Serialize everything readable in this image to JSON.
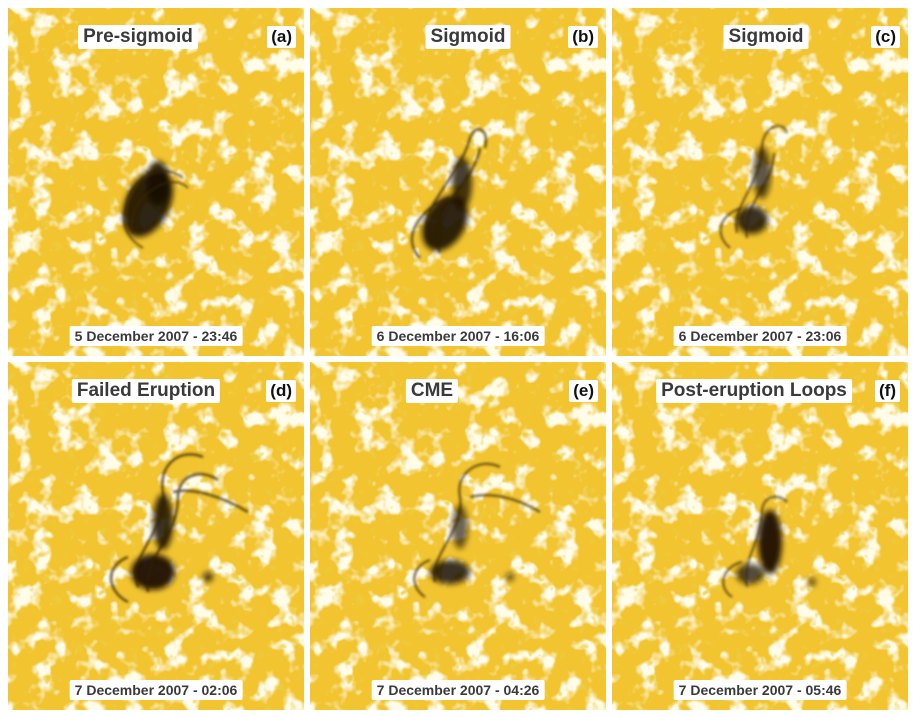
{
  "panels": [
    {
      "title": "Pre-sigmoid",
      "letter": "(a)",
      "date": "5 December 2007 - 23:46"
    },
    {
      "title": "Sigmoid",
      "letter": "(b)",
      "date": "6 December 2007 - 16:06"
    },
    {
      "title": "Sigmoid",
      "letter": "(c)",
      "date": "6 December 2007 - 23:06"
    },
    {
      "title": "Failed Eruption",
      "letter": "(d)",
      "date": "7 December 2007 - 02:06"
    },
    {
      "title": "CME",
      "letter": "(e)",
      "date": "7 December 2007 - 04:26"
    },
    {
      "title": "Post-eruption Loops",
      "letter": "(f)",
      "date": "7 December 2007 - 05:46"
    }
  ],
  "colors": {
    "sun_yellow": "#f1c430",
    "bright_network": "#fdf6d6",
    "dark_loops": "#1a1205"
  }
}
